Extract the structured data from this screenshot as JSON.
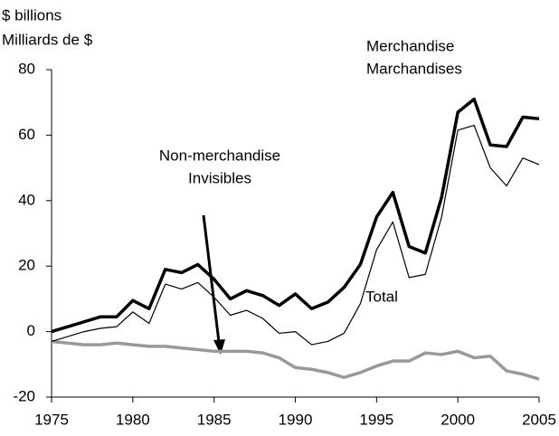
{
  "chart_data": {
    "type": "line",
    "unit_label": "$ billions",
    "unit_label_fr": "Milliards de $",
    "x": [
      1975,
      1976,
      1977,
      1978,
      1979,
      1980,
      1981,
      1982,
      1983,
      1984,
      1985,
      1986,
      1987,
      1988,
      1989,
      1990,
      1991,
      1992,
      1993,
      1994,
      1995,
      1996,
      1997,
      1998,
      1999,
      2000,
      2001,
      2002,
      2003,
      2004,
      2005
    ],
    "series": [
      {
        "name": "Merchandise",
        "name_fr": "Marchandises",
        "color": "#000000",
        "width": 3.5,
        "values": [
          0,
          1.5,
          3,
          4.5,
          4.5,
          9.5,
          7,
          19,
          18,
          20.5,
          16,
          10,
          12.5,
          11,
          8,
          11.5,
          7,
          9,
          13.5,
          20.5,
          35,
          42.5,
          26,
          24,
          41,
          67,
          71,
          57,
          56.5,
          65.5,
          65
        ]
      },
      {
        "name": "Total",
        "color": "#000000",
        "width": 1.2,
        "values": [
          -3,
          -1.5,
          0,
          1,
          1.5,
          6,
          2.5,
          14.5,
          13,
          15,
          10.5,
          5,
          6.5,
          4,
          -0.5,
          0,
          -4,
          -3,
          -0.5,
          8.5,
          25,
          33.5,
          16.5,
          17.5,
          35,
          61.5,
          63,
          50,
          44.5,
          53,
          51
        ]
      },
      {
        "name": "Non-merchandise",
        "name_fr": "Invisibles",
        "color": "#999999",
        "width": 3.5,
        "values": [
          -3,
          -3.5,
          -4,
          -4,
          -3.5,
          -4,
          -4.5,
          -4.5,
          -5,
          -5.5,
          -6,
          -6,
          -6,
          -6.5,
          -8,
          -11,
          -11.5,
          -12.5,
          -14,
          -12.5,
          -10.5,
          -9,
          -9,
          -6.5,
          -7,
          -6,
          -8,
          -7.5,
          -12,
          -13,
          -14.5
        ]
      }
    ],
    "xlim": [
      1975,
      2005
    ],
    "xticks": [
      1975,
      1980,
      1985,
      1990,
      1995,
      2000,
      2005
    ],
    "ylim": [
      -20,
      80
    ],
    "yticks": [
      -20,
      0,
      20,
      40,
      60,
      80
    ],
    "grid": false
  }
}
